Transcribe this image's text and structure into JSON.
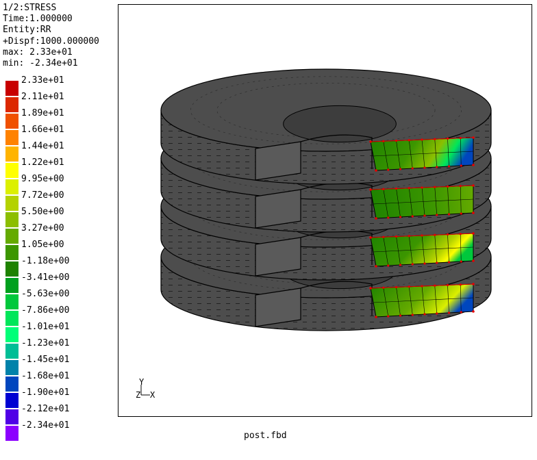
{
  "info": {
    "lines": [
      "1/2:STRESS",
      "Time:1.000000",
      "Entity:RR",
      "+Dispf:1000.000000",
      "max: 2.33e+01",
      "min: -2.34e+01"
    ]
  },
  "legend": {
    "entries": [
      {
        "label": "2.33e+01",
        "color": "#c80000"
      },
      {
        "label": "2.11e+01",
        "color": "#dc2800"
      },
      {
        "label": "1.89e+01",
        "color": "#f05000"
      },
      {
        "label": "1.66e+01",
        "color": "#ff8200"
      },
      {
        "label": "1.44e+01",
        "color": "#ffb400"
      },
      {
        "label": "1.22e+01",
        "color": "#ffff00"
      },
      {
        "label": "9.95e+00",
        "color": "#dcf000"
      },
      {
        "label": "7.72e+00",
        "color": "#b4d200"
      },
      {
        "label": "5.50e+00",
        "color": "#8cbe00"
      },
      {
        "label": "3.27e+00",
        "color": "#64aa00"
      },
      {
        "label": "1.05e+00",
        "color": "#3c9600"
      },
      {
        "label": "-1.18e+00",
        "color": "#1e8200"
      },
      {
        "label": "-3.41e+00",
        "color": "#00a01e"
      },
      {
        "label": "-5.63e+00",
        "color": "#00c83c"
      },
      {
        "label": "-7.86e+00",
        "color": "#00e65a"
      },
      {
        "label": "-1.01e+01",
        "color": "#00ff78"
      },
      {
        "label": "-1.23e+01",
        "color": "#00be96"
      },
      {
        "label": "-1.45e+01",
        "color": "#0082aa"
      },
      {
        "label": "-1.68e+01",
        "color": "#0046be"
      },
      {
        "label": "-1.90e+01",
        "color": "#0000d2"
      },
      {
        "label": "-2.12e+01",
        "color": "#5000e6"
      },
      {
        "label": "-2.34e+01",
        "color": "#8c00ff"
      }
    ]
  },
  "triad": {
    "y_label": "Y",
    "z_label": "Z",
    "x_label": "X"
  },
  "footer": {
    "filename": "post.fbd"
  },
  "colors": {
    "mesh": "#4d4d4d",
    "edge": "#000000",
    "node": "#e60000"
  }
}
